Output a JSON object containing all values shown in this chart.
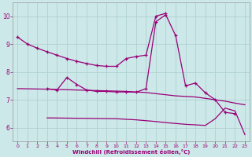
{
  "xlabel": "Windchill (Refroidissement éolien,°C)",
  "background_color": "#cce8e8",
  "grid_color": "#aacece",
  "line_color": "#990077",
  "xlim": [
    -0.5,
    23.5
  ],
  "ylim": [
    5.5,
    10.5
  ],
  "yticks": [
    6,
    7,
    8,
    9,
    10
  ],
  "xticks": [
    0,
    1,
    2,
    3,
    4,
    5,
    6,
    7,
    8,
    9,
    10,
    11,
    12,
    13,
    14,
    15,
    16,
    17,
    18,
    19,
    20,
    21,
    22,
    23
  ],
  "curve1_x": [
    0,
    1,
    2,
    3,
    4,
    5,
    6,
    7,
    8,
    9,
    10,
    11,
    12,
    13,
    14,
    15
  ],
  "curve1_y": [
    9.25,
    9.0,
    8.85,
    8.72,
    8.6,
    8.48,
    8.38,
    8.3,
    8.23,
    8.2,
    8.2,
    8.48,
    8.55,
    8.6,
    10.0,
    10.1
  ],
  "curve2_x": [
    3,
    4,
    5,
    6,
    7,
    8,
    9,
    10,
    11,
    12,
    13,
    14,
    15,
    16,
    17,
    18,
    19,
    20,
    21,
    22
  ],
  "curve2_y": [
    7.4,
    7.35,
    7.8,
    7.55,
    7.35,
    7.3,
    7.3,
    7.28,
    7.28,
    7.27,
    7.4,
    9.8,
    10.05,
    9.3,
    7.5,
    7.6,
    7.25,
    7.0,
    6.55,
    6.5
  ],
  "curve3_x": [
    0,
    3,
    4,
    5,
    6,
    7,
    8,
    9,
    10,
    11,
    12,
    13,
    14,
    15,
    16,
    17,
    18,
    19,
    20,
    21,
    22,
    23
  ],
  "curve3_y": [
    7.4,
    7.38,
    7.37,
    7.36,
    7.35,
    7.34,
    7.33,
    7.32,
    7.31,
    7.3,
    7.28,
    7.26,
    7.22,
    7.18,
    7.14,
    7.12,
    7.1,
    7.05,
    7.0,
    6.95,
    6.88,
    6.82
  ],
  "curve4_x": [
    3,
    10,
    11,
    12,
    13,
    14,
    15,
    16,
    17,
    18,
    19,
    20,
    21,
    22,
    23
  ],
  "curve4_y": [
    6.35,
    6.32,
    6.3,
    6.28,
    6.25,
    6.22,
    6.18,
    6.15,
    6.12,
    6.1,
    6.08,
    6.32,
    6.7,
    6.6,
    5.75
  ]
}
